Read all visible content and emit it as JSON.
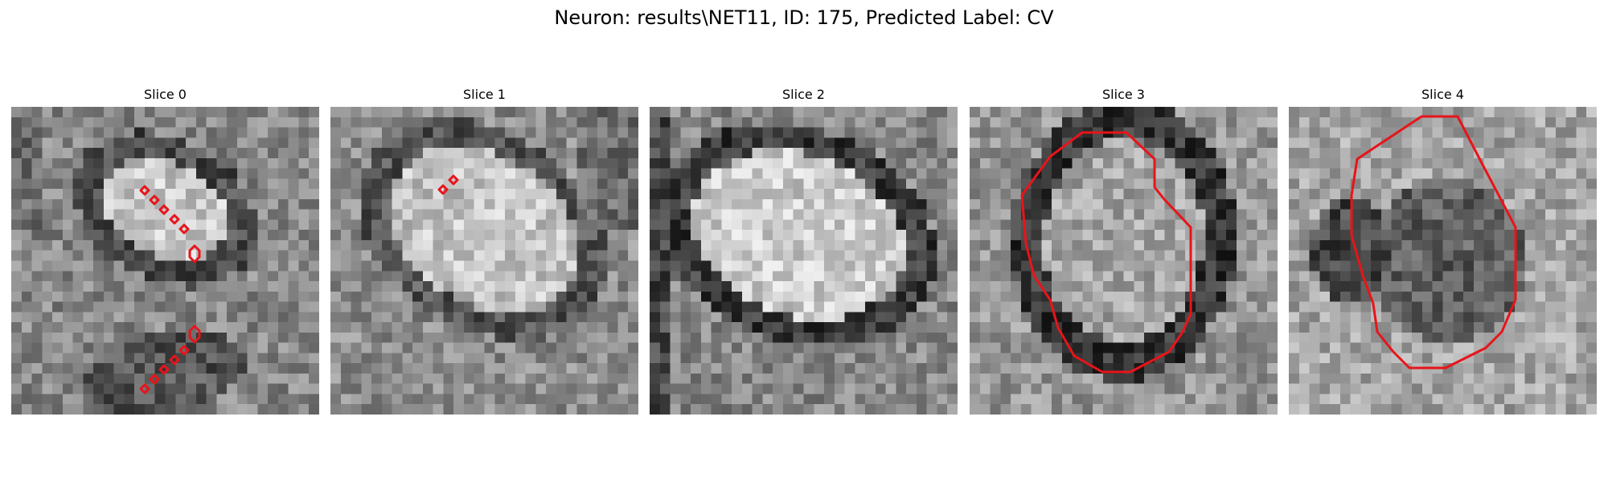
{
  "figure": {
    "title": "Neuron: results\\NET11, ID: 175, Predicted Label: CV"
  },
  "panels": [
    {
      "title": "Slice 0"
    },
    {
      "title": "Slice 1"
    },
    {
      "title": "Slice 2"
    },
    {
      "title": "Slice 3"
    },
    {
      "title": "Slice 4"
    }
  ],
  "colors": {
    "contour": "#e8141a"
  },
  "image": {
    "colormap": "grayscale",
    "pixel_grid": 30
  }
}
